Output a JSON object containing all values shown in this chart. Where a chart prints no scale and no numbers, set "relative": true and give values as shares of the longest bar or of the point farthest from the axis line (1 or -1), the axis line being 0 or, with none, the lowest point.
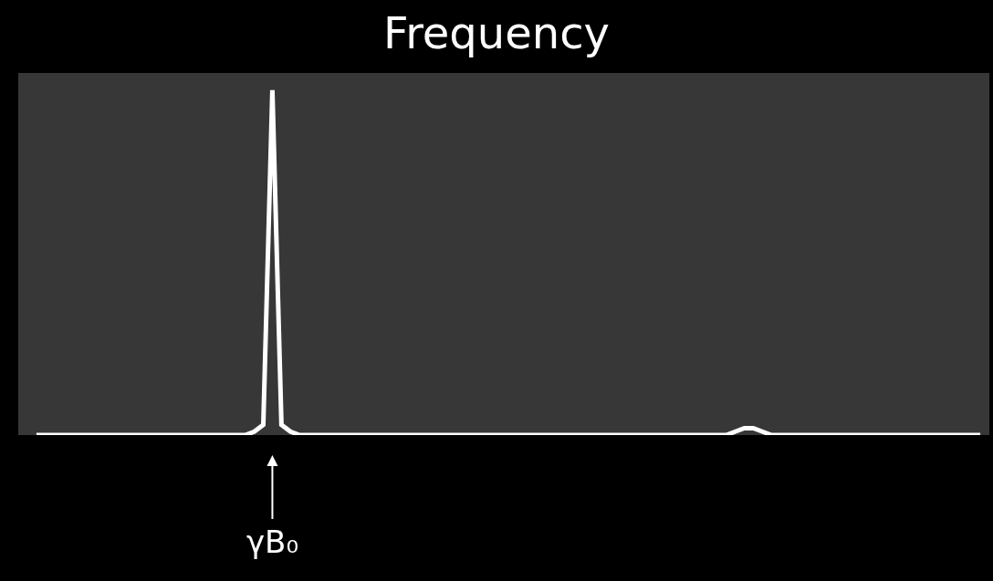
{
  "chart_data": {
    "type": "line",
    "title": "Frequency",
    "relative": true,
    "color": "#ffffff",
    "marker": "none",
    "line_style": "solid",
    "annotations": [
      "γB₀"
    ],
    "categories": [
      null,
      null,
      null,
      null,
      null,
      null,
      null,
      null,
      null,
      null,
      null,
      null,
      null,
      null,
      null,
      null,
      null,
      null,
      null,
      null,
      null,
      null,
      null,
      null,
      null,
      null,
      null,
      null,
      null,
      null,
      null,
      null,
      null,
      null,
      null,
      null,
      null,
      null,
      null,
      null,
      null,
      null,
      null,
      null,
      null,
      null,
      null,
      null,
      null,
      null,
      null,
      null,
      null,
      null,
      null,
      null,
      null,
      null,
      null,
      null,
      null,
      null,
      null,
      null,
      null,
      null,
      null,
      null,
      null,
      null,
      null,
      null,
      null,
      null,
      null,
      null,
      null,
      null,
      null,
      null,
      null,
      null,
      null,
      null,
      null,
      null,
      null,
      null,
      null,
      null,
      null,
      null,
      null,
      null,
      null,
      null,
      null,
      null,
      null,
      null,
      null,
      null,
      null,
      null,
      null
    ],
    "values": [
      0,
      0,
      0,
      0,
      0,
      0,
      0,
      0,
      0,
      0,
      0,
      0,
      0,
      0,
      0,
      0,
      0,
      0,
      0,
      0,
      0,
      0,
      0,
      0,
      0.01,
      0.03,
      1,
      0.03,
      0.01,
      0,
      0,
      0,
      0,
      0,
      0,
      0,
      0,
      0,
      0,
      0,
      0,
      0,
      0,
      0,
      0,
      0,
      0,
      0,
      0,
      0,
      0,
      0,
      0,
      0,
      0,
      0,
      0,
      0,
      0,
      0,
      0,
      0,
      0,
      0,
      0,
      0,
      0,
      0,
      0,
      0,
      0,
      0,
      0,
      0,
      0,
      0,
      0,
      0.01,
      0.02,
      0.02,
      0.01,
      0,
      0,
      0,
      0,
      0,
      0,
      0,
      0,
      0,
      0,
      0,
      0,
      0,
      0,
      0,
      0,
      0,
      0,
      0,
      0,
      0,
      0,
      0,
      0
    ]
  }
}
